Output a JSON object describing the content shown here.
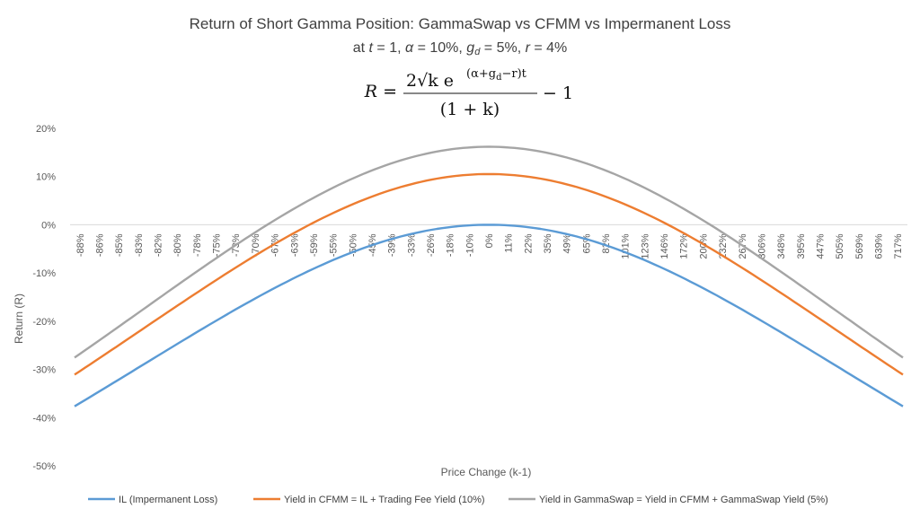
{
  "chart_data": {
    "type": "line",
    "title": "Return of Short Gamma Position: GammaSwap vs CFMM vs Impermanent Loss",
    "subtitle": {
      "prefix": "at ",
      "t_var": "t",
      "t_val": " = 1, ",
      "alpha_var": "α",
      "alpha_val": " = 10%, ",
      "gd_var": "g",
      "gd_sub": "d",
      "gd_val": " = 5%, ",
      "r_var": "r",
      "r_val": " = 4%"
    },
    "formula": {
      "lhs": "R =",
      "numerator": "2√k e",
      "exponent": "(α+g",
      "exponent_sub": "d",
      "exponent_end": "−r)t",
      "denominator": "(1 + k)",
      "tail": "− 1"
    },
    "xlabel": "Price Change (k-1)",
    "ylabel": "Return (R)",
    "ylim": [
      -0.5,
      0.2
    ],
    "y_ticks": [
      {
        "value": 0.2,
        "label": "20%"
      },
      {
        "value": 0.1,
        "label": "10%"
      },
      {
        "value": 0.0,
        "label": "0%"
      },
      {
        "value": -0.1,
        "label": "-10%"
      },
      {
        "value": -0.2,
        "label": "-20%"
      },
      {
        "value": -0.3,
        "label": "-30%"
      },
      {
        "value": -0.4,
        "label": "-40%"
      },
      {
        "value": -0.5,
        "label": "-50%"
      }
    ],
    "categories": [
      "-88%",
      "-86%",
      "-85%",
      "-83%",
      "-82%",
      "-80%",
      "-78%",
      "-75%",
      "-73%",
      "-70%",
      "-67%",
      "-63%",
      "-59%",
      "-55%",
      "-50%",
      "-45%",
      "-39%",
      "-33%",
      "-26%",
      "-18%",
      "-10%",
      "0%",
      "11%",
      "22%",
      "35%",
      "49%",
      "65%",
      "82%",
      "101%",
      "123%",
      "146%",
      "172%",
      "200%",
      "232%",
      "267%",
      "306%",
      "348%",
      "395%",
      "447%",
      "505%",
      "569%",
      "639%",
      "717%"
    ],
    "grid": false,
    "legend_position": "bottom",
    "series": [
      {
        "name": "IL (Impermanent Loss)",
        "color": "#5B9BD5",
        "k_ln_range": [
          -2.1,
          2.1
        ],
        "fee_yield": 0.0,
        "gs_yield": 0.0
      },
      {
        "name": "Yield in CFMM = IL + Trading Fee Yield (10%)",
        "color": "#ED7D31",
        "k_ln_range": [
          -2.1,
          2.1
        ],
        "fee_yield": 0.1,
        "gs_yield": 0.0
      },
      {
        "name": "Yield in GammaSwap = Yield in CFMM + GammaSwap Yield (5%)",
        "color": "#A5A5A5",
        "k_ln_range": [
          -2.1,
          2.1
        ],
        "fee_yield": 0.1,
        "gs_yield": 0.05
      }
    ],
    "params": {
      "t": 1,
      "alpha": 0.1,
      "g_d": 0.05,
      "r": 0.04
    },
    "colors": {
      "axis": "#D9D9D9",
      "text": "#595959"
    }
  }
}
